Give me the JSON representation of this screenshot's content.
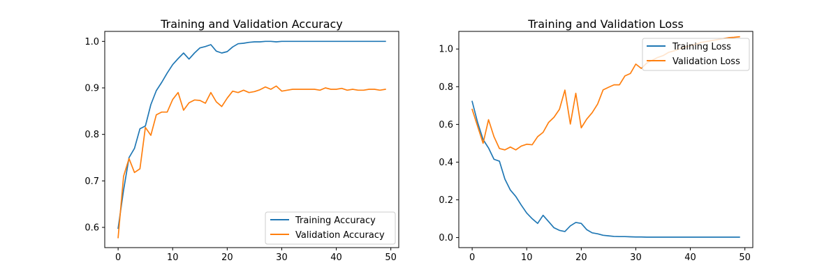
{
  "chart_data": [
    {
      "type": "line",
      "title": "Training and Validation Accuracy",
      "xlabel": "",
      "ylabel": "",
      "xlim": [
        -2.45,
        51.45
      ],
      "ylim": [
        0.5565,
        1.0215
      ],
      "xticks": [
        0,
        10,
        20,
        30,
        40,
        50
      ],
      "yticks": [
        0.6,
        0.7,
        0.8,
        0.9,
        1.0
      ],
      "ytick_labels": [
        "0.6",
        "0.7",
        "0.8",
        "0.9",
        "1.0"
      ],
      "legend_position": "lower-right",
      "x": [
        0,
        1,
        2,
        3,
        4,
        5,
        6,
        7,
        8,
        9,
        10,
        11,
        12,
        13,
        14,
        15,
        16,
        17,
        18,
        19,
        20,
        21,
        22,
        23,
        24,
        25,
        26,
        27,
        28,
        29,
        30,
        31,
        32,
        33,
        34,
        35,
        36,
        37,
        38,
        39,
        40,
        41,
        42,
        43,
        44,
        45,
        46,
        47,
        48,
        49
      ],
      "series": [
        {
          "name": "Training Accuracy",
          "color": "#1f77b4",
          "values": [
            0.598,
            0.68,
            0.75,
            0.77,
            0.812,
            0.818,
            0.864,
            0.894,
            0.912,
            0.932,
            0.95,
            0.963,
            0.975,
            0.962,
            0.975,
            0.986,
            0.989,
            0.993,
            0.979,
            0.975,
            0.978,
            0.988,
            0.995,
            0.996,
            0.998,
            0.999,
            0.999,
            1.0,
            1.0,
            0.999,
            1.0,
            1.0,
            1.0,
            1.0,
            1.0,
            1.0,
            1.0,
            1.0,
            1.0,
            1.0,
            1.0,
            1.0,
            1.0,
            1.0,
            1.0,
            1.0,
            1.0,
            1.0,
            1.0,
            1.0
          ]
        },
        {
          "name": "Validation Accuracy",
          "color": "#ff7f0e",
          "values": [
            0.578,
            0.71,
            0.748,
            0.718,
            0.726,
            0.815,
            0.798,
            0.842,
            0.848,
            0.848,
            0.875,
            0.89,
            0.852,
            0.868,
            0.874,
            0.873,
            0.867,
            0.89,
            0.87,
            0.86,
            0.878,
            0.893,
            0.89,
            0.895,
            0.89,
            0.892,
            0.896,
            0.902,
            0.897,
            0.904,
            0.893,
            0.895,
            0.897,
            0.897,
            0.897,
            0.897,
            0.897,
            0.895,
            0.9,
            0.897,
            0.897,
            0.899,
            0.895,
            0.897,
            0.895,
            0.895,
            0.897,
            0.897,
            0.895,
            0.897
          ]
        }
      ]
    },
    {
      "type": "line",
      "title": "Training and Validation Loss",
      "xlabel": "",
      "ylabel": "",
      "xlim": [
        -2.45,
        51.45
      ],
      "ylim": [
        -0.0534,
        1.0934
      ],
      "xticks": [
        0,
        10,
        20,
        30,
        40,
        50
      ],
      "yticks": [
        0.0,
        0.2,
        0.4,
        0.6,
        0.8,
        1.0
      ],
      "ytick_labels": [
        "0.0",
        "0.2",
        "0.4",
        "0.6",
        "0.8",
        "1.0"
      ],
      "legend_position": "upper-right",
      "x": [
        0,
        1,
        2,
        3,
        4,
        5,
        6,
        7,
        8,
        9,
        10,
        11,
        12,
        13,
        14,
        15,
        16,
        17,
        18,
        19,
        20,
        21,
        22,
        23,
        24,
        25,
        26,
        27,
        28,
        29,
        30,
        31,
        32,
        33,
        34,
        35,
        36,
        37,
        38,
        39,
        40,
        41,
        42,
        43,
        44,
        45,
        46,
        47,
        48,
        49
      ],
      "series": [
        {
          "name": "Training Loss",
          "color": "#1f77b4",
          "values": [
            0.722,
            0.61,
            0.52,
            0.475,
            0.415,
            0.405,
            0.31,
            0.252,
            0.218,
            0.172,
            0.13,
            0.1,
            0.075,
            0.118,
            0.085,
            0.052,
            0.038,
            0.032,
            0.062,
            0.08,
            0.075,
            0.042,
            0.025,
            0.02,
            0.012,
            0.009,
            0.006,
            0.005,
            0.005,
            0.004,
            0.003,
            0.003,
            0.002,
            0.002,
            0.002,
            0.002,
            0.002,
            0.002,
            0.002,
            0.002,
            0.002,
            0.002,
            0.002,
            0.002,
            0.002,
            0.002,
            0.002,
            0.002,
            0.002,
            0.002
          ]
        },
        {
          "name": "Validation Loss",
          "color": "#ff7f0e",
          "values": [
            0.68,
            0.59,
            0.5,
            0.625,
            0.535,
            0.472,
            0.465,
            0.48,
            0.465,
            0.485,
            0.495,
            0.492,
            0.535,
            0.558,
            0.61,
            0.638,
            0.68,
            0.782,
            0.602,
            0.765,
            0.582,
            0.628,
            0.662,
            0.708,
            0.783,
            0.797,
            0.81,
            0.81,
            0.857,
            0.87,
            0.92,
            0.897,
            0.925,
            0.94,
            0.955,
            0.965,
            0.982,
            0.99,
            1.0,
            1.01,
            1.018,
            1.025,
            1.035,
            1.04,
            1.045,
            1.05,
            1.055,
            1.06,
            1.062,
            1.065
          ]
        }
      ]
    }
  ]
}
